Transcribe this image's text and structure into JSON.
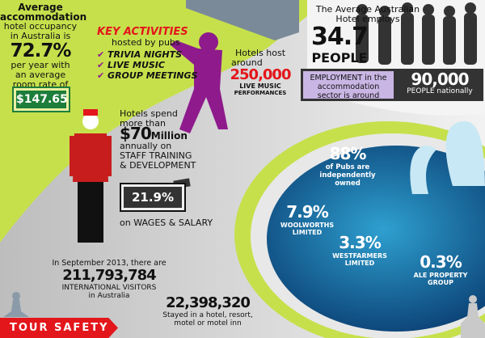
{
  "occupancy": {
    "line1": "Average",
    "line2": "accommodation",
    "line3": "hotel occupancy",
    "line4": "in Australia is",
    "value": "72.7%",
    "line5": "per year with",
    "line6": "an average",
    "line7": "room rate of",
    "rate": "$147.65"
  },
  "activities": {
    "title": "KEY ACTIVITIES",
    "subtitle": "hosted by pubs",
    "items": [
      "TRIVIA NIGHTS",
      "LIVE MUSIC",
      "GROUP MEETINGS"
    ]
  },
  "live_music": {
    "line1": "Hotels host",
    "line2": "around",
    "value": "250,000",
    "line3": "LIVE MUSIC",
    "line4": "PERFORMANCES"
  },
  "employs": {
    "line1": "The Average Australian",
    "line2": "Hotel employs",
    "value": "34.7",
    "unit": "PEOPLE"
  },
  "employment": {
    "label": "EMPLOYMENT in the accommodation sector is around",
    "value": "90,000",
    "suffix": "PEOPLE nationally"
  },
  "training": {
    "line1": "Hotels spend",
    "line2": "more than",
    "value": "$70",
    "unit": "Million",
    "line3": "annually on",
    "line4": "STAFF TRAINING",
    "line5": "& DEVELOPMENT",
    "percent": "21.9%",
    "line6": "on WAGES & SALARY"
  },
  "pubs": {
    "value": "88%",
    "line1": "of Pubs are",
    "line2": "independently",
    "line3": "owned"
  },
  "woolworths": {
    "value": "7.9%",
    "line1": "WOOLWORTHS",
    "line2": "LIMITED"
  },
  "westfarmers": {
    "value": "3.3%",
    "line1": "WESTFARMERS",
    "line2": "LIMITED"
  },
  "ale": {
    "value": "0.3%",
    "line1": "ALE PROPERTY",
    "line2": "GROUP"
  },
  "visitors": {
    "line1": "In September 2013, there are",
    "value": "211,793,784",
    "line2": "INTERNATIONAL VISITORS",
    "line3": "in Australia"
  },
  "stayed": {
    "value": "22,398,320",
    "line1": "Stayed in a hotel, resort,",
    "line2": "motel or motel inn"
  },
  "banner": {
    "label": "TOUR SAFETY"
  },
  "colors": {
    "lime": "#c6e04c",
    "red": "#e3161b",
    "purple": "#8e1a8c",
    "pool": "#0f5f92",
    "green_badge": "#1d7d3a"
  }
}
